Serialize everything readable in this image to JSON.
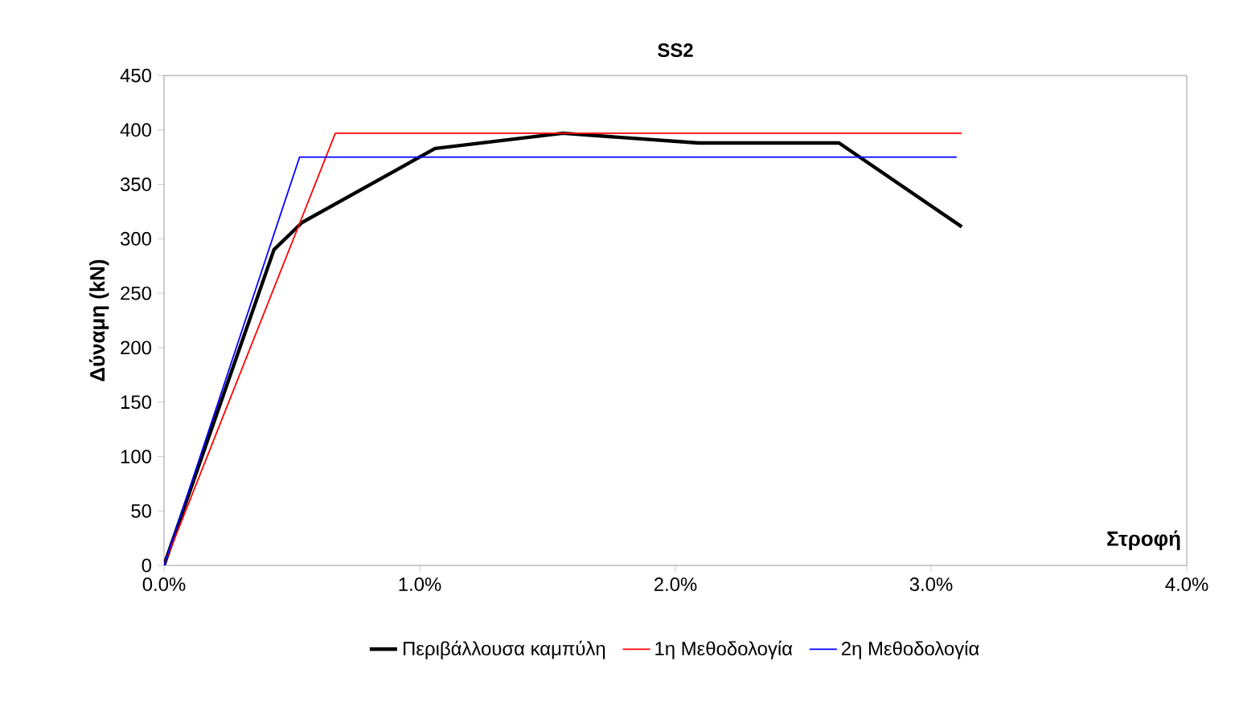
{
  "chart_data": {
    "type": "line",
    "title": "SS2",
    "xlabel": "Στροφή",
    "ylabel": "Δύναμη (kN)",
    "xlim": [
      0,
      4
    ],
    "xticks": [
      {
        "value": 0,
        "label": "0.0%"
      },
      {
        "value": 1,
        "label": "1.0%"
      },
      {
        "value": 2,
        "label": "2.0%"
      },
      {
        "value": 3,
        "label": "3.0%"
      },
      {
        "value": 4,
        "label": "4.0%"
      }
    ],
    "ylim": [
      0,
      450
    ],
    "yticks": [
      0,
      50,
      100,
      150,
      200,
      250,
      300,
      350,
      400,
      450
    ],
    "grid": false,
    "legend": "bottom",
    "marker": "none",
    "line_style": "solid",
    "series": [
      {
        "name": "Περιβάλλουσα καμπύλη",
        "color": "#000000",
        "x": [
          0,
          0.43,
          0.54,
          1.06,
          1.56,
          2.09,
          2.64,
          3.12
        ],
        "values": [
          0,
          290,
          315,
          383,
          397,
          388,
          388,
          311
        ]
      },
      {
        "name": "1η Μεθοδολογία",
        "color": "#ff0000",
        "x": [
          0,
          0.67,
          3.12
        ],
        "values": [
          0,
          397,
          397
        ]
      },
      {
        "name": "2η Μεθοδολογία",
        "color": "#0000ff",
        "x": [
          0,
          0.53,
          3.1
        ],
        "values": [
          0,
          375,
          375
        ]
      }
    ]
  }
}
